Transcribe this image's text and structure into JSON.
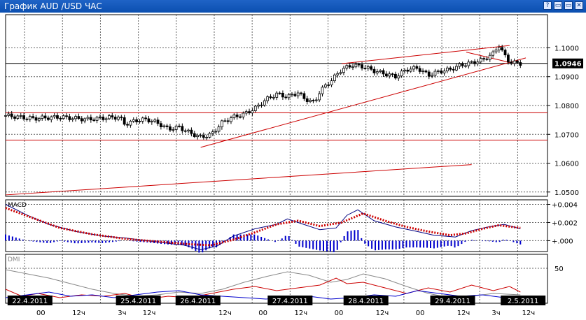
{
  "window": {
    "title": "График AUD /USD ЧАС",
    "buttons": [
      "?",
      "▭",
      "▭",
      "✕"
    ]
  },
  "chart_data": {
    "type": "candlestick",
    "title": "График AUD /USD ЧАС",
    "price": {
      "ylim": [
        1.0485,
        1.1115
      ],
      "yticks": [
        "1.1000",
        "1.0900",
        "1.0800",
        "1.0700",
        "1.0600",
        "1.0500"
      ],
      "last_price": "1.0946",
      "horizontal_lines": [
        1.0946,
        1.0775,
        1.068
      ],
      "trendlines": [
        {
          "x1": 0.0,
          "y1": 1.049,
          "x2": 0.86,
          "y2": 1.0595
        },
        {
          "x1": 0.36,
          "y1": 1.0655,
          "x2": 0.96,
          "y2": 1.0965
        },
        {
          "x1": 0.62,
          "y1": 1.0945,
          "x2": 0.93,
          "y2": 1.1008
        },
        {
          "x1": 0.85,
          "y1": 1.0985,
          "x2": 0.94,
          "y2": 1.0945
        }
      ],
      "close_path": [
        [
          0.0,
          1.0765
        ],
        [
          0.05,
          1.0755
        ],
        [
          0.1,
          1.076
        ],
        [
          0.15,
          1.0752
        ],
        [
          0.19,
          1.0758
        ],
        [
          0.21,
          1.076
        ],
        [
          0.22,
          1.0735
        ],
        [
          0.24,
          1.0748
        ],
        [
          0.26,
          1.0752
        ],
        [
          0.28,
          1.074
        ],
        [
          0.3,
          1.0718
        ],
        [
          0.32,
          1.0725
        ],
        [
          0.34,
          1.0705
        ],
        [
          0.36,
          1.069
        ],
        [
          0.38,
          1.07
        ],
        [
          0.4,
          1.0742
        ],
        [
          0.42,
          1.076
        ],
        [
          0.44,
          1.077
        ],
        [
          0.46,
          1.079
        ],
        [
          0.48,
          1.082
        ],
        [
          0.5,
          1.084
        ],
        [
          0.52,
          1.083
        ],
        [
          0.54,
          1.0845
        ],
        [
          0.55,
          1.0825
        ],
        [
          0.57,
          1.081
        ],
        [
          0.58,
          1.085
        ],
        [
          0.6,
          1.0885
        ],
        [
          0.62,
          1.0925
        ],
        [
          0.64,
          1.094
        ],
        [
          0.66,
          1.0935
        ],
        [
          0.68,
          1.092
        ],
        [
          0.7,
          1.091
        ],
        [
          0.72,
          1.09
        ],
        [
          0.74,
          1.0925
        ],
        [
          0.76,
          1.093
        ],
        [
          0.78,
          1.0905
        ],
        [
          0.8,
          1.0918
        ],
        [
          0.82,
          1.0925
        ],
        [
          0.84,
          1.094
        ],
        [
          0.86,
          1.0948
        ],
        [
          0.88,
          1.0958
        ],
        [
          0.9,
          1.098
        ],
        [
          0.91,
          1.101
        ],
        [
          0.92,
          1.0975
        ],
        [
          0.93,
          1.095
        ],
        [
          0.95,
          1.0946
        ]
      ]
    },
    "macd": {
      "label": "MACD",
      "ylim": [
        -0.0012,
        0.0045
      ],
      "yticks": [
        "+0.004",
        "+0.002",
        "+.000"
      ],
      "line_path": [
        [
          0.0,
          0.004
        ],
        [
          0.04,
          0.0028
        ],
        [
          0.08,
          0.0018
        ],
        [
          0.13,
          0.001
        ],
        [
          0.18,
          0.0005
        ],
        [
          0.22,
          0.0003
        ],
        [
          0.26,
          0.0
        ],
        [
          0.3,
          -0.0003
        ],
        [
          0.33,
          -0.0005
        ],
        [
          0.36,
          -0.001
        ],
        [
          0.39,
          -0.0006
        ],
        [
          0.42,
          0.0005
        ],
        [
          0.46,
          0.0013
        ],
        [
          0.5,
          0.0018
        ],
        [
          0.52,
          0.0024
        ],
        [
          0.55,
          0.0018
        ],
        [
          0.58,
          0.0012
        ],
        [
          0.61,
          0.0014
        ],
        [
          0.63,
          0.0028
        ],
        [
          0.65,
          0.0034
        ],
        [
          0.68,
          0.0022
        ],
        [
          0.72,
          0.0015
        ],
        [
          0.76,
          0.001
        ],
        [
          0.79,
          0.0006
        ],
        [
          0.83,
          0.0004
        ],
        [
          0.86,
          0.0011
        ],
        [
          0.89,
          0.0015
        ],
        [
          0.92,
          0.0018
        ],
        [
          0.95,
          0.0013
        ]
      ],
      "signal_path": [
        [
          0.0,
          0.0036
        ],
        [
          0.05,
          0.0025
        ],
        [
          0.1,
          0.0014
        ],
        [
          0.16,
          0.0007
        ],
        [
          0.22,
          0.0002
        ],
        [
          0.28,
          -0.0001
        ],
        [
          0.34,
          -0.0004
        ],
        [
          0.38,
          -0.0005
        ],
        [
          0.42,
          0.0001
        ],
        [
          0.46,
          0.0009
        ],
        [
          0.5,
          0.0018
        ],
        [
          0.54,
          0.0022
        ],
        [
          0.58,
          0.0016
        ],
        [
          0.62,
          0.002
        ],
        [
          0.66,
          0.003
        ],
        [
          0.7,
          0.0022
        ],
        [
          0.74,
          0.0015
        ],
        [
          0.78,
          0.001
        ],
        [
          0.82,
          0.0006
        ],
        [
          0.85,
          0.0008
        ],
        [
          0.88,
          0.0013
        ],
        [
          0.91,
          0.0017
        ],
        [
          0.95,
          0.0014
        ]
      ]
    },
    "dmi": {
      "label": "DMI",
      "ylim": [
        0,
        70
      ],
      "yticks": [
        "50"
      ],
      "adx_path": [
        [
          0.0,
          48
        ],
        [
          0.04,
          42
        ],
        [
          0.08,
          36
        ],
        [
          0.12,
          28
        ],
        [
          0.16,
          20
        ],
        [
          0.2,
          14
        ],
        [
          0.24,
          10
        ],
        [
          0.28,
          12
        ],
        [
          0.32,
          16
        ],
        [
          0.36,
          14
        ],
        [
          0.4,
          20
        ],
        [
          0.44,
          30
        ],
        [
          0.48,
          38
        ],
        [
          0.52,
          45
        ],
        [
          0.56,
          40
        ],
        [
          0.6,
          30
        ],
        [
          0.63,
          34
        ],
        [
          0.66,
          42
        ],
        [
          0.7,
          35
        ],
        [
          0.74,
          24
        ],
        [
          0.78,
          14
        ],
        [
          0.82,
          8
        ],
        [
          0.86,
          10
        ],
        [
          0.9,
          14
        ],
        [
          0.95,
          12
        ]
      ],
      "plus_di_path": [
        [
          0.0,
          20
        ],
        [
          0.03,
          10
        ],
        [
          0.06,
          14
        ],
        [
          0.1,
          8
        ],
        [
          0.14,
          12
        ],
        [
          0.18,
          10
        ],
        [
          0.22,
          14
        ],
        [
          0.26,
          6
        ],
        [
          0.3,
          10
        ],
        [
          0.34,
          8
        ],
        [
          0.38,
          14
        ],
        [
          0.42,
          20
        ],
        [
          0.46,
          24
        ],
        [
          0.5,
          18
        ],
        [
          0.54,
          22
        ],
        [
          0.58,
          26
        ],
        [
          0.61,
          36
        ],
        [
          0.63,
          28
        ],
        [
          0.66,
          30
        ],
        [
          0.7,
          22
        ],
        [
          0.74,
          14
        ],
        [
          0.78,
          22
        ],
        [
          0.82,
          16
        ],
        [
          0.86,
          26
        ],
        [
          0.9,
          18
        ],
        [
          0.93,
          24
        ],
        [
          0.95,
          16
        ]
      ],
      "minus_di_path": [
        [
          0.0,
          8
        ],
        [
          0.04,
          12
        ],
        [
          0.08,
          16
        ],
        [
          0.12,
          10
        ],
        [
          0.16,
          12
        ],
        [
          0.2,
          8
        ],
        [
          0.24,
          12
        ],
        [
          0.28,
          16
        ],
        [
          0.32,
          18
        ],
        [
          0.36,
          12
        ],
        [
          0.4,
          10
        ],
        [
          0.44,
          8
        ],
        [
          0.48,
          6
        ],
        [
          0.52,
          8
        ],
        [
          0.56,
          10
        ],
        [
          0.6,
          6
        ],
        [
          0.64,
          8
        ],
        [
          0.68,
          12
        ],
        [
          0.72,
          10
        ],
        [
          0.76,
          18
        ],
        [
          0.8,
          14
        ],
        [
          0.84,
          10
        ],
        [
          0.88,
          12
        ],
        [
          0.92,
          8
        ],
        [
          0.95,
          10
        ]
      ]
    },
    "dates": [
      {
        "x": 0.045,
        "label": "22.4.2011"
      },
      {
        "x": 0.245,
        "label": "25.4.2011"
      },
      {
        "x": 0.355,
        "label": "26.4.2011"
      },
      {
        "x": 0.525,
        "label": "27.4.2011"
      },
      {
        "x": 0.665,
        "label": "28.4.2011"
      },
      {
        "x": 0.825,
        "label": "29.4.2011"
      },
      {
        "x": 0.955,
        "label": "2.5.2011"
      }
    ],
    "hour_ticks": [
      {
        "x": 0.065,
        "label": "00"
      },
      {
        "x": 0.135,
        "label": "12ч"
      },
      {
        "x": 0.215,
        "label": "3ч"
      },
      {
        "x": 0.265,
        "label": "12ч"
      },
      {
        "x": 0.405,
        "label": "12ч"
      },
      {
        "x": 0.475,
        "label": "00"
      },
      {
        "x": 0.545,
        "label": "12ч"
      },
      {
        "x": 0.615,
        "label": "00"
      },
      {
        "x": 0.695,
        "label": "12ч"
      },
      {
        "x": 0.765,
        "label": "00"
      },
      {
        "x": 0.845,
        "label": "12ч"
      },
      {
        "x": 0.905,
        "label": "3ч"
      },
      {
        "x": 0.965,
        "label": "12ч"
      }
    ],
    "colors": {
      "candle": "#000000",
      "trend": "#cc0000",
      "macd_line": "#000080",
      "macd_signal": "#cc0000",
      "macd_hist": "#0000cc",
      "dmi_adx": "#888888",
      "dmi_plus": "#cc0000",
      "dmi_minus": "#0000cc"
    }
  }
}
